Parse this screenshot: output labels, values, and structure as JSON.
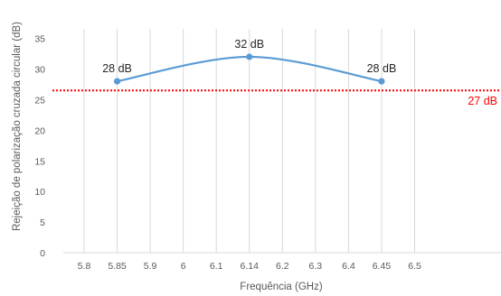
{
  "chart_data": {
    "type": "line",
    "xlabel": "Frequência (GHz)",
    "ylabel": "Rejeição de polarização cruzada circular (dB)",
    "xticks": [
      "5.8",
      "5.85",
      "5.9",
      "6",
      "6.1",
      "6.14",
      "6.2",
      "6.3",
      "6.4",
      "6.45",
      "6.5"
    ],
    "yticks": [
      0,
      5,
      10,
      15,
      20,
      25,
      30,
      35
    ],
    "ylim": [
      0,
      35
    ],
    "grid": "vertical",
    "series": [
      {
        "color": "#5b9bd5",
        "smooth": true,
        "points": [
          {
            "x": "5.85",
            "y": 28,
            "label": "28 dB"
          },
          {
            "x": "6.14",
            "y": 32,
            "label": "32 dB"
          },
          {
            "x": "6.45",
            "y": 28,
            "label": "28 dB"
          }
        ]
      }
    ],
    "reference_line": {
      "y": 26.5,
      "label": "27 dB",
      "color": "#ff0000",
      "style": "dotted"
    }
  }
}
